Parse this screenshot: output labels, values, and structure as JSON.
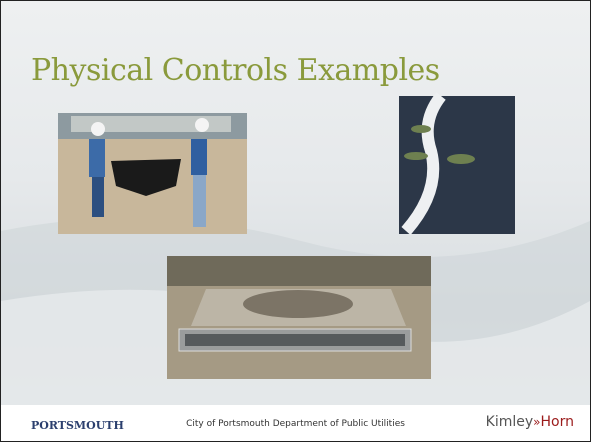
{
  "header": {
    "title": "Physical Controls Examples"
  },
  "footer": {
    "organization_logo": "PORTSMOUTH",
    "center_text": "City of Portsmouth Department of Public Utilities",
    "partner_logo": [
      "Kimley",
      "Horn"
    ]
  }
}
